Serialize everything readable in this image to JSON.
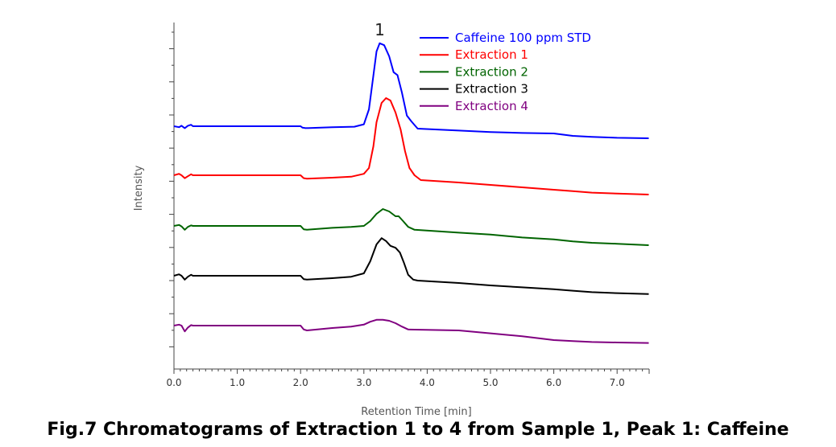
{
  "caption": "Fig.7 Chromatograms of Extraction 1 to 4 from Sample 1, Peak 1: Caffeine",
  "chart_data": {
    "type": "line",
    "xlabel": "Retention Time [min]",
    "ylabel": "Intensity",
    "xlim": [
      0,
      7.5
    ],
    "x_ticks": [
      "0.0",
      "1.0",
      "2.0",
      "3.0",
      "4.0",
      "5.0",
      "6.0",
      "7.0"
    ],
    "y_ticks_labeled": false,
    "grid": false,
    "legend_position": "top-right",
    "peak_annotation": {
      "label": "1",
      "x": 3.25
    },
    "series": [
      {
        "name": "Caffeine 100 ppm STD",
        "color": "#0000ff",
        "x": [
          0,
          0.08,
          0.12,
          0.17,
          0.22,
          0.27,
          0.3,
          0.5,
          1.0,
          1.5,
          2.0,
          2.03,
          2.08,
          2.5,
          2.85,
          3.0,
          3.08,
          3.15,
          3.2,
          3.25,
          3.32,
          3.4,
          3.47,
          3.53,
          3.6,
          3.68,
          3.75,
          3.85,
          4.5,
          5.0,
          5.5,
          6.0,
          6.3,
          6.6,
          7.0,
          7.5
        ],
        "y": [
          0,
          -0.02,
          0.01,
          -0.04,
          0.01,
          0.03,
          0,
          0,
          0,
          0,
          0,
          -0.03,
          -0.04,
          -0.02,
          -0.01,
          0.04,
          0.35,
          1.05,
          1.55,
          1.72,
          1.68,
          1.45,
          1.12,
          1.06,
          0.7,
          0.22,
          0.1,
          -0.05,
          -0.09,
          -0.12,
          -0.14,
          -0.15,
          -0.2,
          -0.22,
          -0.24,
          -0.25
        ]
      },
      {
        "name": "Extraction 1",
        "color": "#ff0000",
        "x": [
          0,
          0.08,
          0.12,
          0.17,
          0.22,
          0.27,
          0.3,
          0.5,
          1.0,
          1.5,
          2.0,
          2.05,
          2.1,
          2.5,
          2.8,
          3.0,
          3.08,
          3.15,
          3.2,
          3.28,
          3.35,
          3.42,
          3.5,
          3.58,
          3.65,
          3.72,
          3.8,
          3.9,
          4.5,
          5.0,
          5.5,
          6.0,
          6.3,
          6.6,
          7.0,
          7.5
        ],
        "y": [
          0,
          0.03,
          0,
          -0.06,
          -0.02,
          0.02,
          0,
          0,
          0,
          0,
          0,
          -0.06,
          -0.07,
          -0.05,
          -0.03,
          0.03,
          0.15,
          0.6,
          1.1,
          1.5,
          1.6,
          1.55,
          1.3,
          0.95,
          0.5,
          0.15,
          0,
          -0.1,
          -0.15,
          -0.2,
          -0.25,
          -0.3,
          -0.33,
          -0.36,
          -0.38,
          -0.4
        ]
      },
      {
        "name": "Extraction 2",
        "color": "#006400",
        "x": [
          0,
          0.08,
          0.12,
          0.17,
          0.22,
          0.27,
          0.3,
          0.5,
          1.0,
          1.5,
          2.0,
          2.05,
          2.1,
          2.5,
          2.8,
          3.0,
          3.1,
          3.2,
          3.3,
          3.4,
          3.5,
          3.55,
          3.62,
          3.7,
          3.8,
          4.5,
          5.0,
          5.5,
          6.0,
          6.3,
          6.6,
          7.0,
          7.5
        ],
        "y": [
          0,
          0.02,
          -0.01,
          -0.08,
          -0.02,
          0.01,
          0,
          0,
          0,
          0,
          0,
          -0.07,
          -0.08,
          -0.04,
          -0.02,
          0,
          0.1,
          0.25,
          0.35,
          0.3,
          0.2,
          0.2,
          0.1,
          -0.02,
          -0.08,
          -0.14,
          -0.18,
          -0.24,
          -0.28,
          -0.32,
          -0.35,
          -0.37,
          -0.4
        ]
      },
      {
        "name": "Extraction 3",
        "color": "#000000",
        "x": [
          0,
          0.08,
          0.12,
          0.17,
          0.22,
          0.27,
          0.3,
          0.5,
          1.0,
          1.5,
          2.0,
          2.05,
          2.1,
          2.5,
          2.8,
          3.0,
          3.1,
          3.2,
          3.28,
          3.35,
          3.42,
          3.5,
          3.57,
          3.63,
          3.7,
          3.78,
          3.85,
          4.5,
          5.0,
          5.5,
          6.0,
          6.3,
          6.6,
          7.0,
          7.5
        ],
        "y": [
          0,
          0.03,
          0,
          -0.08,
          -0.02,
          0.02,
          0,
          0,
          0,
          0,
          0,
          -0.07,
          -0.08,
          -0.05,
          -0.02,
          0.05,
          0.3,
          0.65,
          0.78,
          0.72,
          0.62,
          0.58,
          0.48,
          0.28,
          0.02,
          -0.08,
          -0.1,
          -0.15,
          -0.2,
          -0.24,
          -0.28,
          -0.31,
          -0.34,
          -0.36,
          -0.38
        ]
      },
      {
        "name": "Extraction 4",
        "color": "#800080",
        "x": [
          0,
          0.08,
          0.12,
          0.17,
          0.22,
          0.27,
          0.3,
          0.5,
          1.0,
          1.5,
          2.0,
          2.05,
          2.1,
          2.5,
          2.8,
          3.0,
          3.1,
          3.2,
          3.3,
          3.4,
          3.5,
          3.6,
          3.7,
          4.5,
          5.0,
          5.5,
          6.0,
          6.3,
          6.6,
          7.0,
          7.5
        ],
        "y": [
          0,
          0.02,
          0,
          -0.12,
          -0.04,
          0.01,
          0,
          0,
          0,
          0,
          0,
          -0.08,
          -0.1,
          -0.05,
          -0.02,
          0.02,
          0.08,
          0.12,
          0.12,
          0.1,
          0.05,
          -0.02,
          -0.08,
          -0.1,
          -0.16,
          -0.22,
          -0.3,
          -0.32,
          -0.34,
          -0.35,
          -0.36
        ]
      }
    ]
  }
}
